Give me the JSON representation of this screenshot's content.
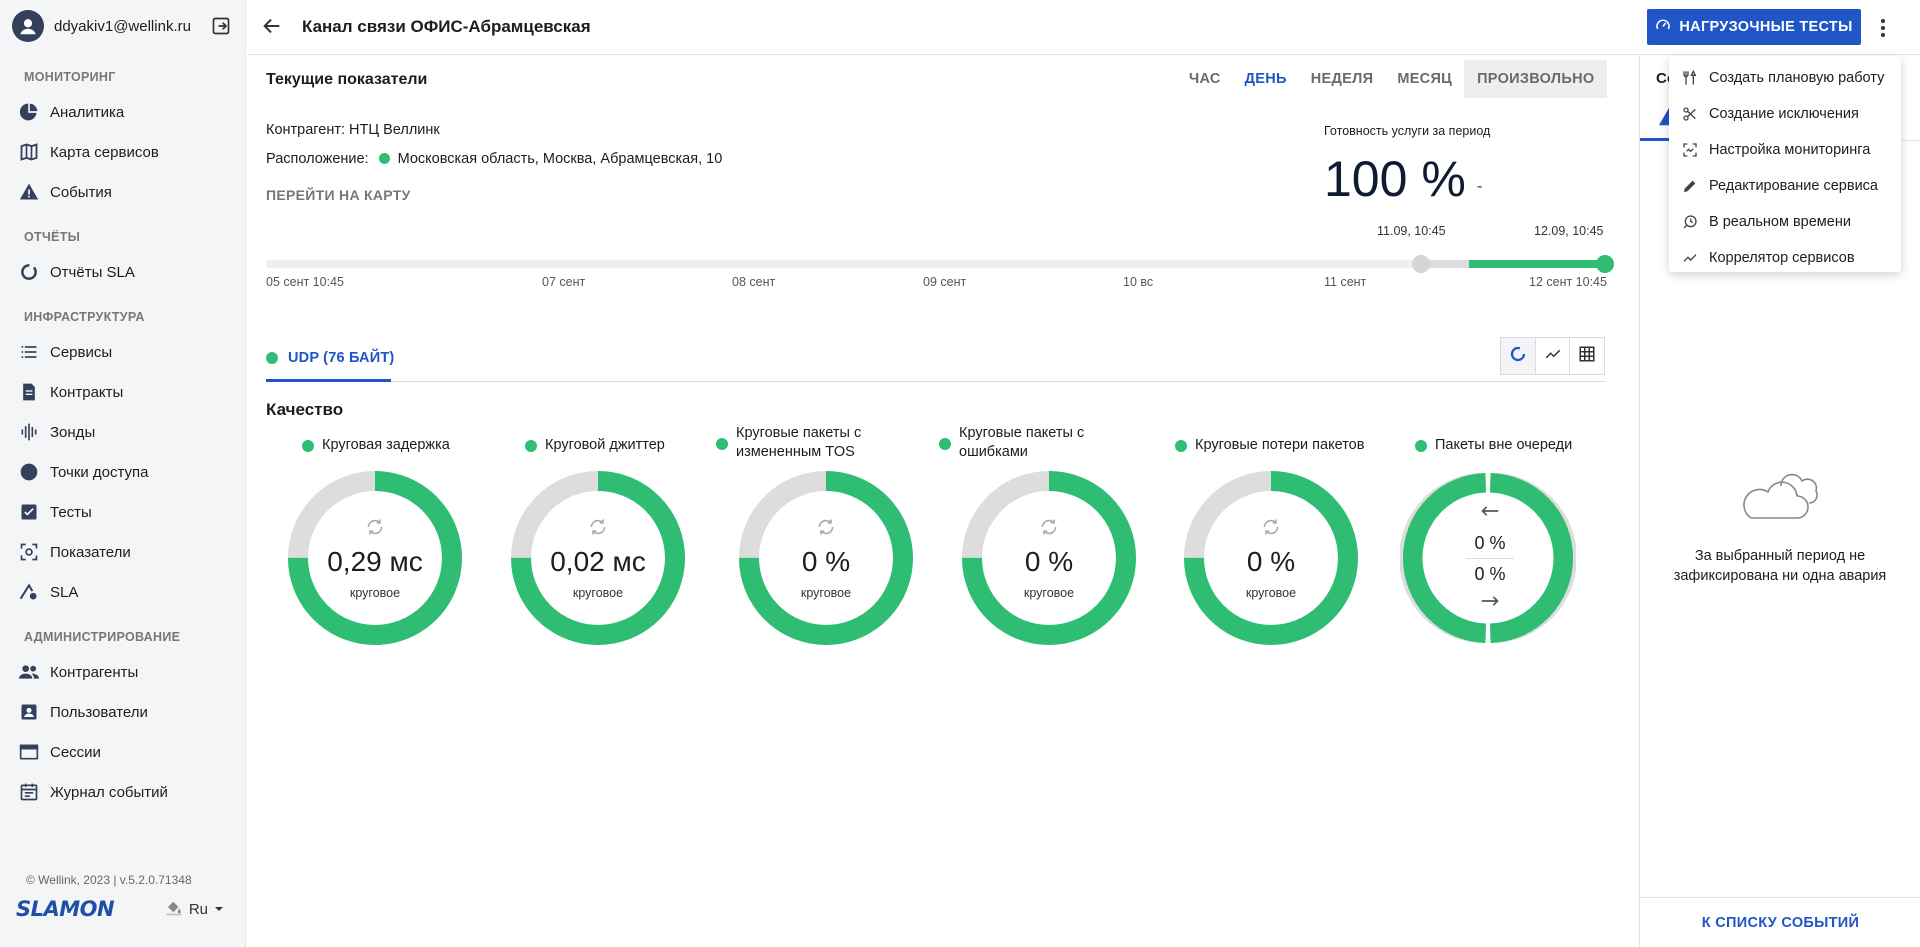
{
  "user": {
    "email": "ddyakiv1@wellink.ru"
  },
  "sidebar": {
    "sections": [
      {
        "title": "МОНИТОРИНГ",
        "items": [
          {
            "label": "Аналитика",
            "icon": "pie-chart-icon"
          },
          {
            "label": "Карта сервисов",
            "icon": "map-icon"
          },
          {
            "label": "События",
            "icon": "warning-icon"
          }
        ]
      },
      {
        "title": "ОТЧЁТЫ",
        "items": [
          {
            "label": "Отчёты SLA",
            "icon": "donut-icon"
          }
        ]
      },
      {
        "title": "ИНФРАСТРУКТУРА",
        "items": [
          {
            "label": "Сервисы",
            "icon": "list-icon"
          },
          {
            "label": "Контракты",
            "icon": "document-icon"
          },
          {
            "label": "Зонды",
            "icon": "waveform-icon"
          },
          {
            "label": "Точки доступа",
            "icon": "circle-icon"
          },
          {
            "label": "Тесты",
            "icon": "checklist-icon"
          },
          {
            "label": "Показатели",
            "icon": "scan-icon"
          },
          {
            "label": "SLA",
            "icon": "gauge-icon"
          }
        ]
      },
      {
        "title": "АДМИНИСТРИРОВАНИЕ",
        "items": [
          {
            "label": "Контрагенты",
            "icon": "people-icon"
          },
          {
            "label": "Пользователи",
            "icon": "contact-icon"
          },
          {
            "label": "Сессии",
            "icon": "window-icon"
          },
          {
            "label": "Журнал событий",
            "icon": "calendar-icon"
          }
        ]
      }
    ],
    "footer": {
      "copyright": "© Wellink, 2023 | v.5.2.0.71348",
      "brand": "SLAMON",
      "language": "Ru"
    }
  },
  "header": {
    "title": "Канал связи ОФИС-Абрамцевская",
    "load_tests_label": "НАГРУЗОЧНЫЕ ТЕСТЫ"
  },
  "current": {
    "title": "Текущие показатели",
    "period_tabs": [
      "ЧАС",
      "ДЕНЬ",
      "НЕДЕЛЯ",
      "МЕСЯЦ",
      "ПРОИЗВОЛЬНО"
    ],
    "active_period": "ДЕНЬ",
    "counterparty": "Контрагент: НТЦ Веллинк",
    "location_label": "Расположение:",
    "location_value": "Московская область, Москва, Абрамцевская, 10",
    "map_link": "ПЕРЕЙТИ НА КАРТУ",
    "availability_label": "Готовность услуги за период",
    "availability_value": "100 %",
    "availability_dash": "-"
  },
  "timeline": {
    "range_start": "11.09, 10:45",
    "range_end": "12.09, 10:45",
    "ticks": [
      "05 сент 10:45",
      "07 сент",
      "08 сент",
      "09 сент",
      "10 вс",
      "11 сент",
      "12 сент 10:45"
    ]
  },
  "protocol_tab": {
    "label": "UDP (76 БАЙТ)"
  },
  "quality": {
    "title": "Качество",
    "gauges": [
      {
        "title": "Круговая задержка",
        "value": "0,29 мс",
        "sub": "круговое",
        "fill": 0.75
      },
      {
        "title": "Круговой джиттер",
        "value": "0,02 мс",
        "sub": "круговое",
        "fill": 0.75
      },
      {
        "title": "Круговые пакеты с измененным TOS",
        "value": "0 %",
        "sub": "круговое",
        "fill": 0.75
      },
      {
        "title": "Круговые пакеты с ошибками",
        "value": "0 %",
        "sub": "круговое",
        "fill": 0.75
      },
      {
        "title": "Круговые потери пакетов",
        "value": "0 %",
        "sub": "круговое",
        "fill": 0.75
      },
      {
        "title": "Пакеты вне очереди",
        "value_in": "0 %",
        "value_out": "0 %",
        "fill_left": 0.375,
        "fill_right": 0.375
      }
    ]
  },
  "right_panel": {
    "tab_partial": "Со",
    "empty_text": "За выбранный период не зафиксирована ни одна авария",
    "footer_link": "К СПИСКУ СОБЫТИЙ"
  },
  "menu": {
    "items": [
      {
        "label": "Создать плановую работу",
        "icon": "tools-icon"
      },
      {
        "label": "Создание исключения",
        "icon": "scissors-icon"
      },
      {
        "label": "Настройка мониторинга",
        "icon": "monitor-settings-icon"
      },
      {
        "label": "Редактирование сервиса",
        "icon": "pencil-icon"
      },
      {
        "label": "В реальном времени",
        "icon": "realtime-icon"
      },
      {
        "label": "Коррелятор сервисов",
        "icon": "trend-icon"
      }
    ]
  },
  "colors": {
    "accent": "#1f55c7",
    "ok": "#2ebd73",
    "ring_bg": "#dddddd"
  }
}
